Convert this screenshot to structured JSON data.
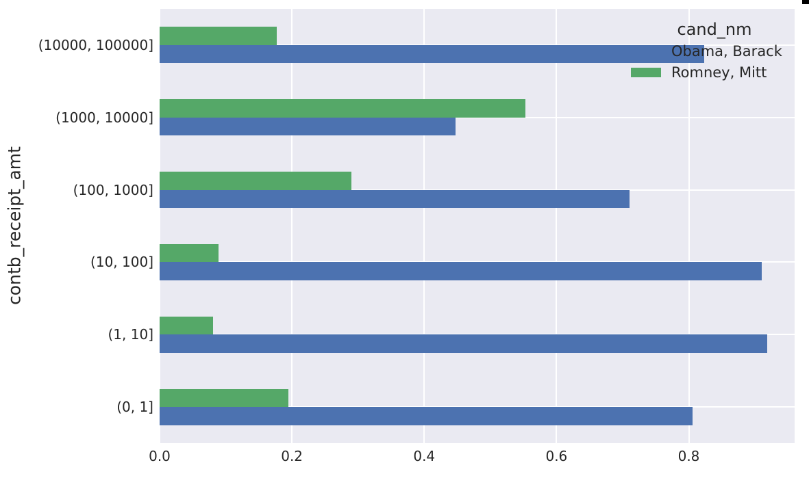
{
  "figure": {
    "background": "#ffffff",
    "plot_background": "#eaeaf2",
    "grid_color": "#ffffff",
    "text_color": "#262626"
  },
  "corner_artifact": {
    "color": "#000000"
  },
  "chart_data": {
    "type": "bar",
    "orientation": "horizontal",
    "title": "",
    "xlabel": "",
    "ylabel": "contb_receipt_amt",
    "category_order": "top_to_bottom",
    "categories": [
      "(10000, 100000]",
      "(1000, 10000]",
      "(100, 1000]",
      "(10, 100]",
      "(1, 10]",
      "(0, 1]"
    ],
    "series": [
      {
        "name": "Obama, Barack",
        "color": "#4c72b0",
        "values": [
          0.8231,
          0.4473,
          0.7102,
          0.9108,
          0.9188,
          0.8052
        ]
      },
      {
        "name": "Romney, Mitt",
        "color": "#55a868",
        "values": [
          0.1769,
          0.5527,
          0.2898,
          0.0892,
          0.0812,
          0.1948
        ]
      }
    ],
    "xlim": [
      0,
      0.96
    ],
    "xticks": [
      0,
      0.2,
      0.4,
      0.6,
      0.8
    ],
    "xtick_labels": [
      "0.0",
      "0.2",
      "0.4",
      "0.6",
      "0.8"
    ],
    "grid": true,
    "legend": {
      "title": "cand_nm",
      "position": "upper-right"
    }
  }
}
